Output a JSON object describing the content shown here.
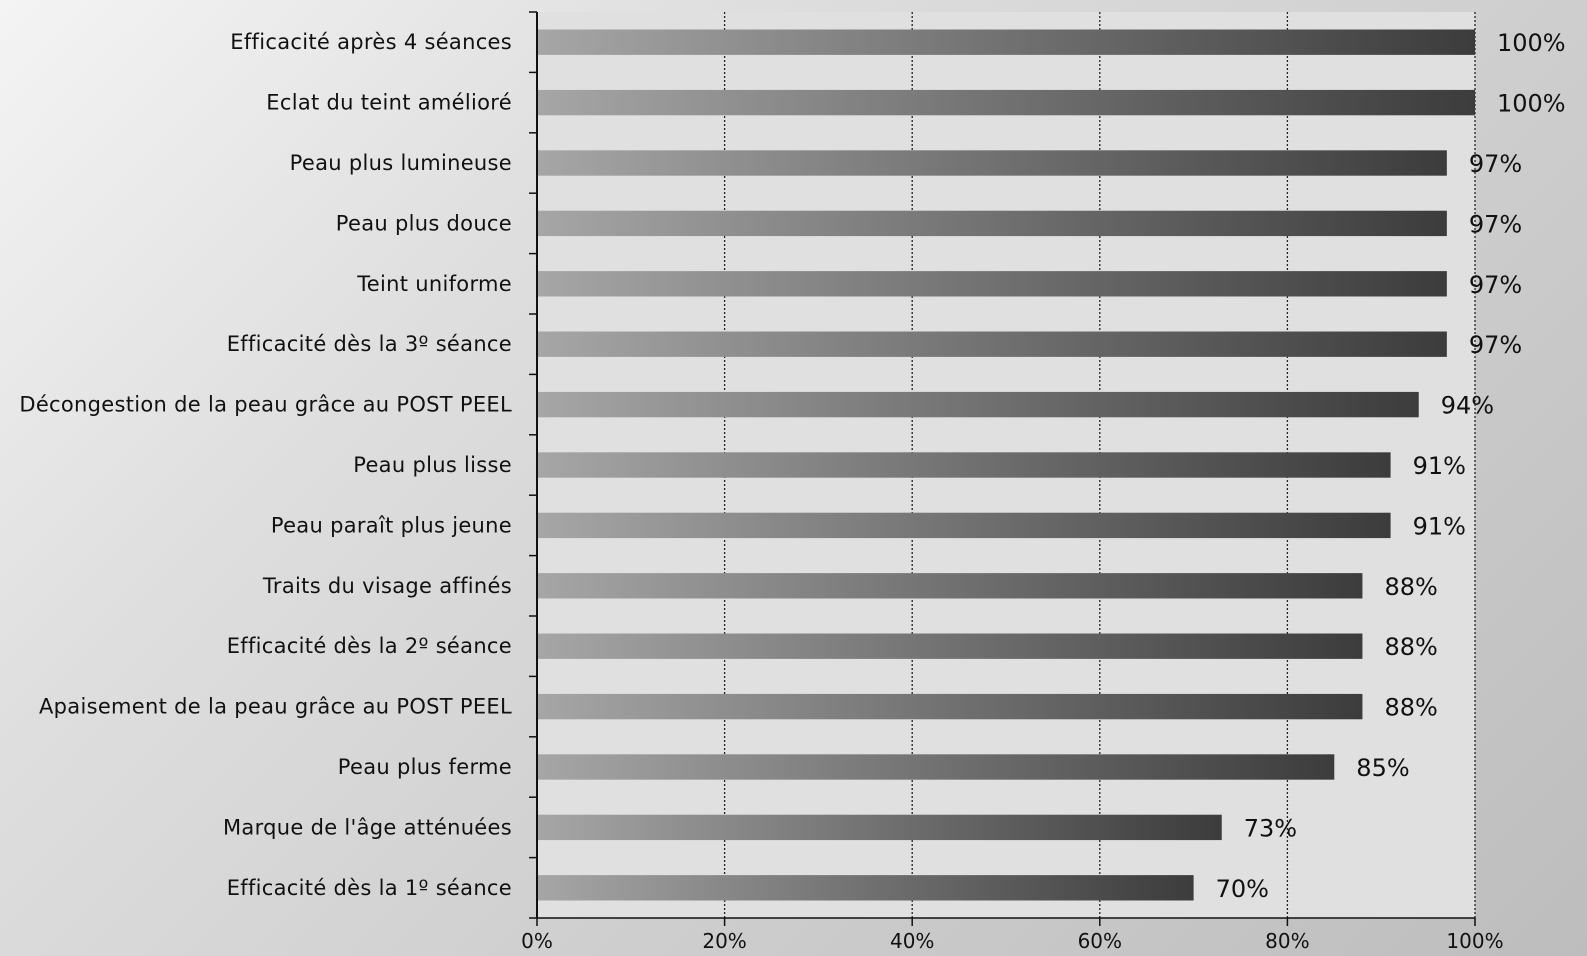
{
  "chart_data": {
    "type": "bar",
    "orientation": "horizontal",
    "categories": [
      "Efficacité après 4 séances",
      "Eclat du teint amélioré",
      "Peau plus lumineuse",
      "Peau plus douce",
      "Teint uniforme",
      "Efficacité dès la 3º séance",
      "Décongestion de la peau grâce au POST PEEL",
      "Peau plus lisse",
      "Peau paraît plus jeune",
      "Traits du visage affinés",
      "Efficacité dès la 2º séance",
      "Apaisement de la peau grâce au POST PEEL",
      "Peau plus ferme",
      "Marque de l'âge atténuées",
      "Efficacité dès la 1º séance"
    ],
    "values": [
      100,
      100,
      97,
      97,
      97,
      97,
      94,
      91,
      91,
      88,
      88,
      88,
      85,
      73,
      70
    ],
    "value_labels": [
      "100%",
      "100%",
      "97%",
      "97%",
      "97%",
      "97%",
      "94%",
      "91%",
      "91%",
      "88%",
      "88%",
      "88%",
      "85%",
      "73%",
      "70%"
    ],
    "xlim": [
      0,
      100
    ],
    "x_ticks": [
      0,
      20,
      40,
      60,
      80,
      100
    ],
    "x_tick_labels": [
      "0%",
      "20%",
      "40%",
      "60%",
      "80%",
      "100%"
    ],
    "grid": "vertical dotted",
    "plot_background": "#e0e0e0",
    "bar_gradient": [
      "#a6a6a6",
      "#3c3c3c"
    ],
    "title": "",
    "xlabel": "",
    "ylabel": ""
  }
}
